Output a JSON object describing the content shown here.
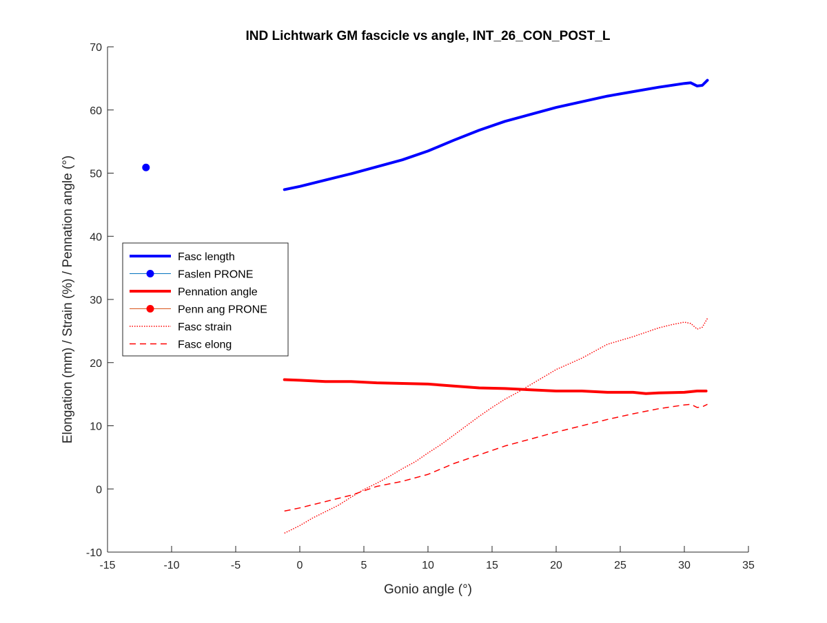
{
  "chart_data": {
    "type": "line",
    "title": "IND Lichtwark GM fascicle vs angle, INT_26_CON_POST_L",
    "xlabel": "Gonio angle (°)",
    "ylabel": "Elongation (mm) / Strain (%) / Pennation angle (°)",
    "xlim": [
      -15,
      35
    ],
    "ylim": [
      -10,
      70
    ],
    "xticks": [
      -15,
      -10,
      -5,
      0,
      5,
      10,
      15,
      20,
      25,
      30,
      35
    ],
    "yticks": [
      -10,
      0,
      10,
      20,
      30,
      40,
      50,
      60,
      70
    ],
    "grid": false,
    "legend_position": "left",
    "series": [
      {
        "name": "Fasc length",
        "kind": "line",
        "style": "solid",
        "color": "#0000ff",
        "width": "thick",
        "x": [
          -1.2,
          0,
          2,
          4,
          6,
          8,
          10,
          12,
          14,
          16,
          18,
          20,
          22,
          24,
          26,
          28,
          30,
          30.5,
          31,
          31.4,
          31.8
        ],
        "y": [
          47.4,
          47.9,
          48.9,
          49.9,
          51.0,
          52.1,
          53.5,
          55.2,
          56.8,
          58.2,
          59.3,
          60.4,
          61.3,
          62.2,
          62.9,
          63.6,
          64.2,
          64.3,
          63.8,
          63.9,
          64.7
        ]
      },
      {
        "name": "Faslen PRONE",
        "kind": "marker",
        "color": "#0000ff",
        "x": [
          -12
        ],
        "y": [
          50.9
        ]
      },
      {
        "name": "Pennation angle",
        "kind": "line",
        "style": "solid",
        "color": "#ff0000",
        "width": "thick",
        "x": [
          -1.2,
          0,
          2,
          4,
          6,
          8,
          10,
          12,
          14,
          16,
          18,
          20,
          22,
          24,
          26,
          27,
          28,
          30,
          31,
          31.7
        ],
        "y": [
          17.3,
          17.2,
          17.0,
          17.0,
          16.8,
          16.7,
          16.6,
          16.3,
          16.0,
          15.9,
          15.7,
          15.5,
          15.5,
          15.3,
          15.3,
          15.1,
          15.2,
          15.3,
          15.5,
          15.5
        ]
      },
      {
        "name": "Penn ang PRONE",
        "kind": "marker",
        "color": "#ff0000",
        "x": [],
        "y": []
      },
      {
        "name": "Fasc strain",
        "kind": "line",
        "style": "dotted",
        "color": "#ff0000",
        "width": "thin",
        "x": [
          -1.2,
          0,
          1,
          2,
          3,
          4,
          5,
          6,
          7,
          8,
          9,
          10,
          11,
          12,
          13,
          14,
          15,
          16,
          17,
          18,
          19,
          20,
          21,
          22,
          23,
          24,
          25,
          26,
          27,
          28,
          29,
          30,
          30.5,
          31,
          31.4,
          31.8
        ],
        "y": [
          -7.0,
          -5.8,
          -4.6,
          -3.6,
          -2.6,
          -1.3,
          -0.1,
          0.9,
          2.0,
          3.2,
          4.3,
          5.7,
          7.0,
          8.5,
          10.0,
          11.5,
          12.9,
          14.2,
          15.3,
          16.5,
          17.7,
          18.9,
          19.8,
          20.7,
          21.8,
          22.9,
          23.5,
          24.1,
          24.8,
          25.5,
          26.0,
          26.4,
          26.2,
          25.3,
          25.6,
          27.0
        ]
      },
      {
        "name": "Fasc elong",
        "kind": "line",
        "style": "dashed",
        "color": "#ff0000",
        "width": "thin",
        "x": [
          -1.2,
          0,
          2,
          4,
          6,
          8,
          10,
          12,
          14,
          16,
          18,
          20,
          22,
          24,
          26,
          28,
          30,
          30.5,
          31,
          31.4,
          31.8
        ],
        "y": [
          -3.5,
          -3.0,
          -2.0,
          -1.0,
          0.4,
          1.2,
          2.3,
          4.0,
          5.4,
          6.8,
          7.9,
          9.0,
          10.0,
          11.0,
          11.9,
          12.7,
          13.3,
          13.4,
          12.9,
          13.0,
          13.4
        ]
      }
    ]
  }
}
